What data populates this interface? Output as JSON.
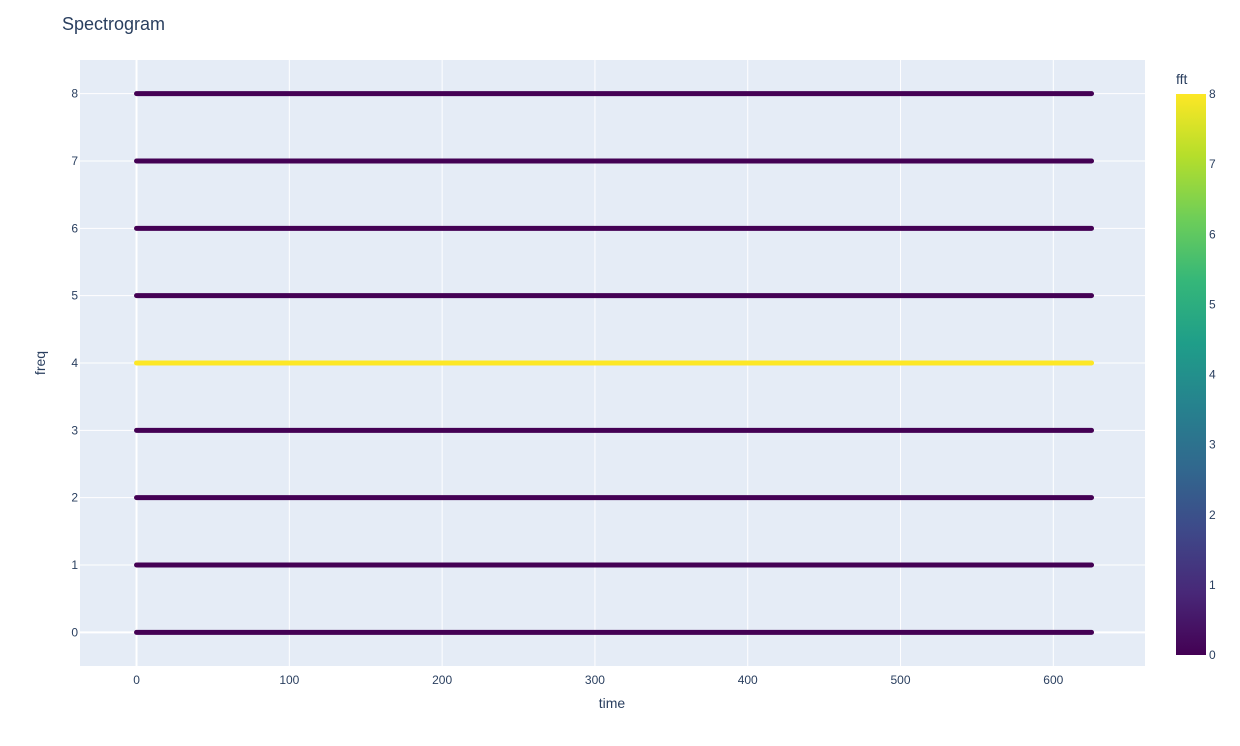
{
  "chart_data": {
    "type": "scatter",
    "title": "Spectrogram",
    "xlabel": "time",
    "ylabel": "freq",
    "xlim": [
      -37,
      660
    ],
    "ylim": [
      -0.5,
      8.5
    ],
    "x_ticks": [
      0,
      100,
      200,
      300,
      400,
      500,
      600
    ],
    "y_ticks": [
      0,
      1,
      2,
      3,
      4,
      5,
      6,
      7,
      8
    ],
    "x_range": [
      0,
      625
    ],
    "freqs": [
      0,
      1,
      2,
      3,
      4,
      5,
      6,
      7,
      8
    ],
    "fft_by_freq": [
      0,
      0,
      0,
      0,
      8,
      0,
      0,
      0,
      0
    ],
    "grid": true,
    "colorbar": {
      "title": "fft",
      "min": 0,
      "max": 8,
      "ticks": [
        0,
        1,
        2,
        3,
        4,
        5,
        6,
        7,
        8
      ],
      "colorscale": "Viridis"
    },
    "colors": {
      "plot_bg": "#e5ecf6",
      "grid": "#ffffff",
      "text": "#2a3f5f",
      "low": "#440154",
      "high": "#fde725"
    }
  }
}
